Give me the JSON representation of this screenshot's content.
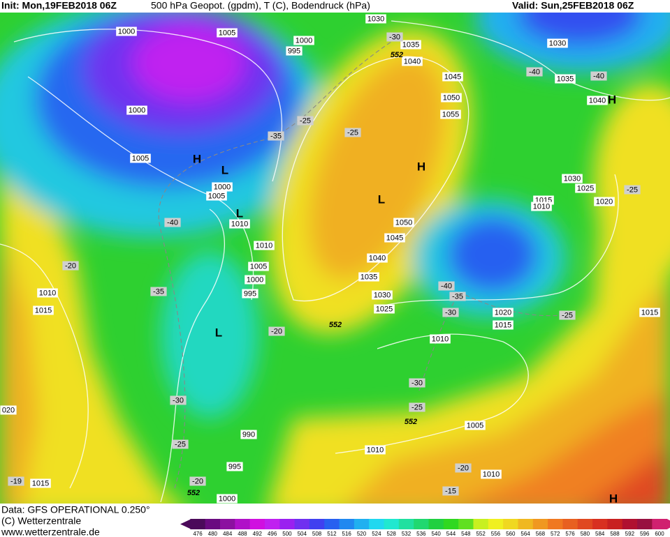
{
  "header": {
    "init": "Init: Mon,19FEB2018 06Z",
    "product": "500 hPa Geopot. (gpdm), T (C), Bodendruck (hPa)",
    "valid": "Valid: Sun,25FEB2018 06Z"
  },
  "map": {
    "isobar_labels": [
      "1000",
      "1005",
      "1000",
      "995",
      "1030",
      "1035",
      "1040",
      "1045",
      "1050",
      "1055",
      "1030",
      "1035",
      "1040",
      "1000",
      "1005",
      "1000",
      "1005",
      "1010",
      "1010",
      "1005",
      "1000",
      "995",
      "1050",
      "1045",
      "1040",
      "1035",
      "1030",
      "1025",
      "1030",
      "1025",
      "1020",
      "1015",
      "1010",
      "1020",
      "1015",
      "1010",
      "1010",
      "1015",
      "1015",
      "020",
      "990",
      "995",
      "1015",
      "1000",
      "1005",
      "1010",
      "1010"
    ],
    "temperature_labels": [
      "-30",
      "-25",
      "-35",
      "-25",
      "-40",
      "-20",
      "-35",
      "-20",
      "-40",
      "-35",
      "-30",
      "-25",
      "-30",
      "-25",
      "-30",
      "-25",
      "-20",
      "-20",
      "-15",
      "-19",
      "-25",
      "-40",
      "-40"
    ],
    "thickness_labels": [
      "552",
      "552",
      "552",
      "552"
    ],
    "pressure_centers": [
      "H",
      "L",
      "L",
      "L",
      "H",
      "L",
      "H",
      "H"
    ]
  },
  "footer": {
    "data": "Data: GFS OPERATIONAL 0.250°",
    "copyright": "(C) Wetterzentrale",
    "url": "www.wetterzentrale.de"
  },
  "colorbar": {
    "ticks": [
      476,
      480,
      484,
      488,
      492,
      496,
      500,
      504,
      508,
      512,
      516,
      520,
      524,
      528,
      532,
      536,
      540,
      544,
      548,
      552,
      556,
      560,
      564,
      568,
      572,
      576,
      580,
      584,
      588,
      592,
      596,
      600
    ],
    "colors": [
      "#4b0a5a",
      "#6a0a80",
      "#8c10a0",
      "#b010c8",
      "#d010e0",
      "#c020f0",
      "#9a20f0",
      "#7030f0",
      "#4040f0",
      "#2860f0",
      "#2088f0",
      "#20b0f0",
      "#20d8f0",
      "#20e8d0",
      "#20e0a0",
      "#20d870",
      "#20d040",
      "#30d820",
      "#60e020",
      "#c8f020",
      "#f0f020",
      "#f0d820",
      "#f0b820",
      "#f09820",
      "#f07820",
      "#e86020",
      "#e04820",
      "#d83020",
      "#c82020",
      "#b01030",
      "#981040",
      "#d02070"
    ]
  }
}
